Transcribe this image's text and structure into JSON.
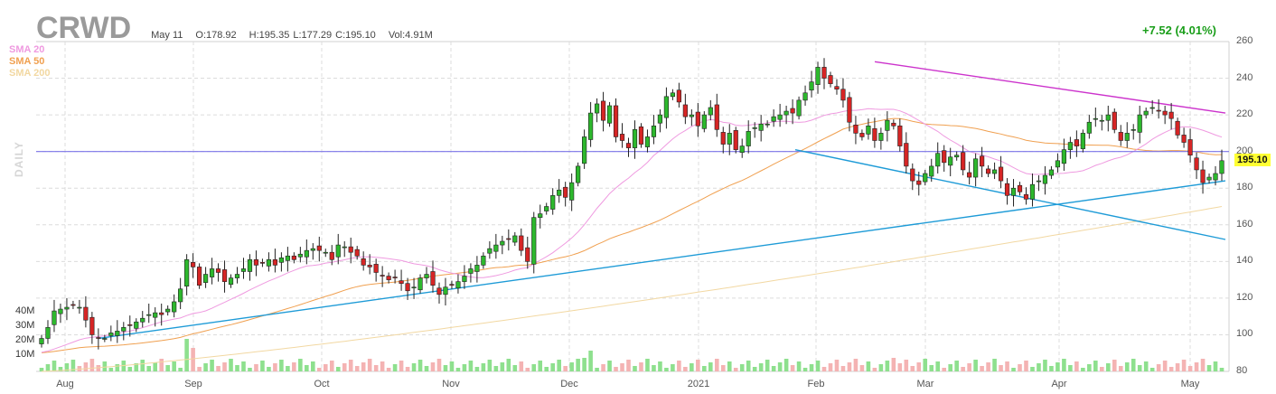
{
  "header": {
    "symbol": "CRWD",
    "date": "May 11",
    "open": "O:178.92",
    "high": "H:195.35",
    "low": "L:177.29",
    "close": "C:195.10",
    "volume": "Vol:4.91M",
    "change": "+7.52 (4.01%)",
    "period": "DAILY"
  },
  "legend": [
    "SMA 20",
    "SMA 50",
    "SMA 200"
  ],
  "colors": {
    "up": "#2db82d",
    "down": "#d62525",
    "vol_up": "#8ee08e",
    "vol_down": "#f4b3b3",
    "sma20": "#ef9ae0",
    "sma50": "#f0a050",
    "sma200": "#f2d8a2",
    "hline": "#7b74e8",
    "trend": "#1e9bd7",
    "resist": "#cc33cc",
    "last_box": "#ffff33",
    "change": "#1a9e1a"
  },
  "last_price_label": "195.10",
  "chart_data": {
    "type": "candlestick",
    "y_axis": {
      "min": 80,
      "max": 260,
      "ticks": [
        260,
        240,
        220,
        200,
        180,
        160,
        140,
        120,
        100,
        80
      ]
    },
    "volume_axis": {
      "ticks": [
        "40M",
        "30M",
        "20M",
        "10M"
      ]
    },
    "x_ticks": [
      "Aug",
      "Sep",
      "Oct",
      "Nov",
      "Dec",
      "2021",
      "Feb",
      "Mar",
      "Apr",
      "May"
    ],
    "horizontal_line": 200,
    "closes": [
      98,
      104,
      113,
      114,
      115,
      116,
      115,
      108,
      100,
      98,
      98,
      101,
      102,
      104,
      105,
      107,
      109,
      111,
      112,
      111,
      114,
      118,
      125,
      141,
      137,
      127,
      133,
      136,
      134,
      129,
      131,
      133,
      136,
      141,
      138,
      139,
      141,
      138,
      142,
      143,
      141,
      144,
      146,
      147,
      146,
      145,
      141,
      149,
      148,
      145,
      143,
      138,
      137,
      134,
      132,
      130,
      131,
      128,
      124,
      126,
      131,
      133,
      127,
      122,
      126,
      127,
      129,
      132,
      136,
      138,
      143,
      147,
      149,
      151,
      152,
      154,
      146,
      140,
      164,
      166,
      170,
      176,
      179,
      175,
      183,
      192,
      208,
      221,
      226,
      217,
      225,
      208,
      206,
      202,
      212,
      204,
      208,
      214,
      220,
      230,
      232,
      227,
      219,
      220,
      214,
      220,
      224,
      212,
      204,
      210,
      201,
      203,
      211,
      213,
      215,
      215,
      219,
      220,
      222,
      221,
      228,
      232,
      238,
      246,
      240,
      237,
      234,
      228,
      216,
      210,
      208,
      214,
      206,
      210,
      217,
      214,
      203,
      192,
      184,
      182,
      188,
      192,
      199,
      194,
      197,
      198,
      190,
      186,
      196,
      192,
      188,
      190,
      184,
      176,
      180,
      178,
      174,
      182,
      184,
      187,
      190,
      195,
      201,
      205,
      203,
      210,
      216,
      218,
      217,
      220,
      212,
      206,
      210,
      212,
      220,
      222,
      224,
      222,
      220,
      218,
      209,
      205,
      198,
      190,
      183,
      186,
      188,
      195
    ],
    "annotations": [
      "SMA 20",
      "SMA 50",
      "SMA 200"
    ]
  }
}
